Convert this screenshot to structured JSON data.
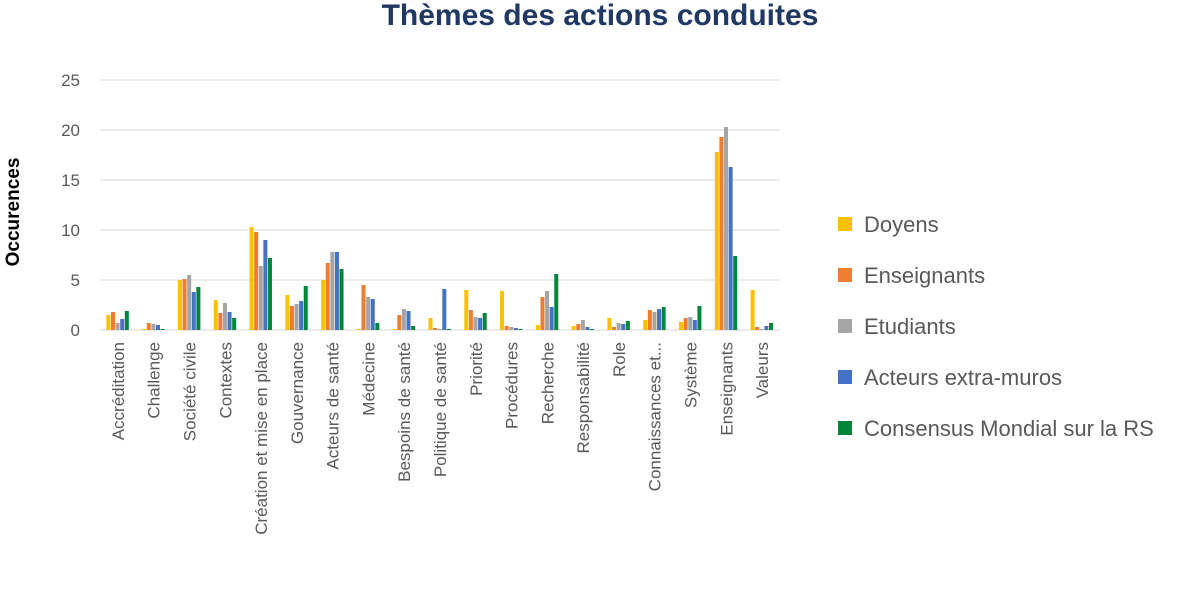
{
  "chart_data": {
    "type": "bar",
    "title": "Thèmes des actions conduites",
    "xlabel": "",
    "ylabel": "Occurences",
    "ylim": [
      0,
      25
    ],
    "yticks": [
      0,
      5,
      10,
      15,
      20,
      25
    ],
    "grid": true,
    "legend_position": "right",
    "categories": [
      "Accréditation",
      "Challenge",
      "Société civile",
      "Contextes",
      "Création et mise en place",
      "Gouvernance",
      "Acteurs de santé",
      "Médecine",
      "Bespoins de santé",
      "Politique de santé",
      "Priorité",
      "Procédures",
      "Recherche",
      "Responsabilité",
      "Role",
      "Connaissances et...",
      "Système",
      "Enseignants",
      "Valeurs"
    ],
    "series": [
      {
        "name": "Doyens",
        "color": "#ffc000",
        "values": [
          1.5,
          0.1,
          5.0,
          3.0,
          10.3,
          3.5,
          5.0,
          0.1,
          0.1,
          1.2,
          4.0,
          3.9,
          0.5,
          0.4,
          1.2,
          1.0,
          0.8,
          17.8,
          4.0
        ]
      },
      {
        "name": "Enseignants",
        "color": "#ed7d31",
        "values": [
          1.8,
          0.7,
          5.1,
          1.7,
          9.8,
          2.4,
          6.7,
          4.5,
          1.5,
          0.2,
          2.0,
          0.4,
          3.3,
          0.6,
          0.3,
          2.0,
          1.2,
          19.3,
          0.3
        ]
      },
      {
        "name": "Etudiants",
        "color": "#a5a5a5",
        "values": [
          0.7,
          0.6,
          5.5,
          2.7,
          6.4,
          2.6,
          7.8,
          3.3,
          2.1,
          0.1,
          1.3,
          0.3,
          3.9,
          1.0,
          0.7,
          1.8,
          1.3,
          20.3,
          0.1
        ]
      },
      {
        "name": "Acteurs extra-muros",
        "color": "#4472c4",
        "values": [
          1.1,
          0.5,
          3.8,
          1.8,
          9.0,
          2.9,
          7.8,
          3.1,
          1.9,
          4.1,
          1.2,
          0.2,
          2.3,
          0.3,
          0.6,
          2.1,
          1.0,
          16.3,
          0.4
        ]
      },
      {
        "name": "Consensus Mondial sur la RS",
        "color": "#00863b",
        "values": [
          1.9,
          0.1,
          4.3,
          1.2,
          7.2,
          4.4,
          6.1,
          0.7,
          0.4,
          0.1,
          1.7,
          0.1,
          5.6,
          0.1,
          0.9,
          2.3,
          2.4,
          7.4,
          0.7
        ]
      }
    ]
  }
}
